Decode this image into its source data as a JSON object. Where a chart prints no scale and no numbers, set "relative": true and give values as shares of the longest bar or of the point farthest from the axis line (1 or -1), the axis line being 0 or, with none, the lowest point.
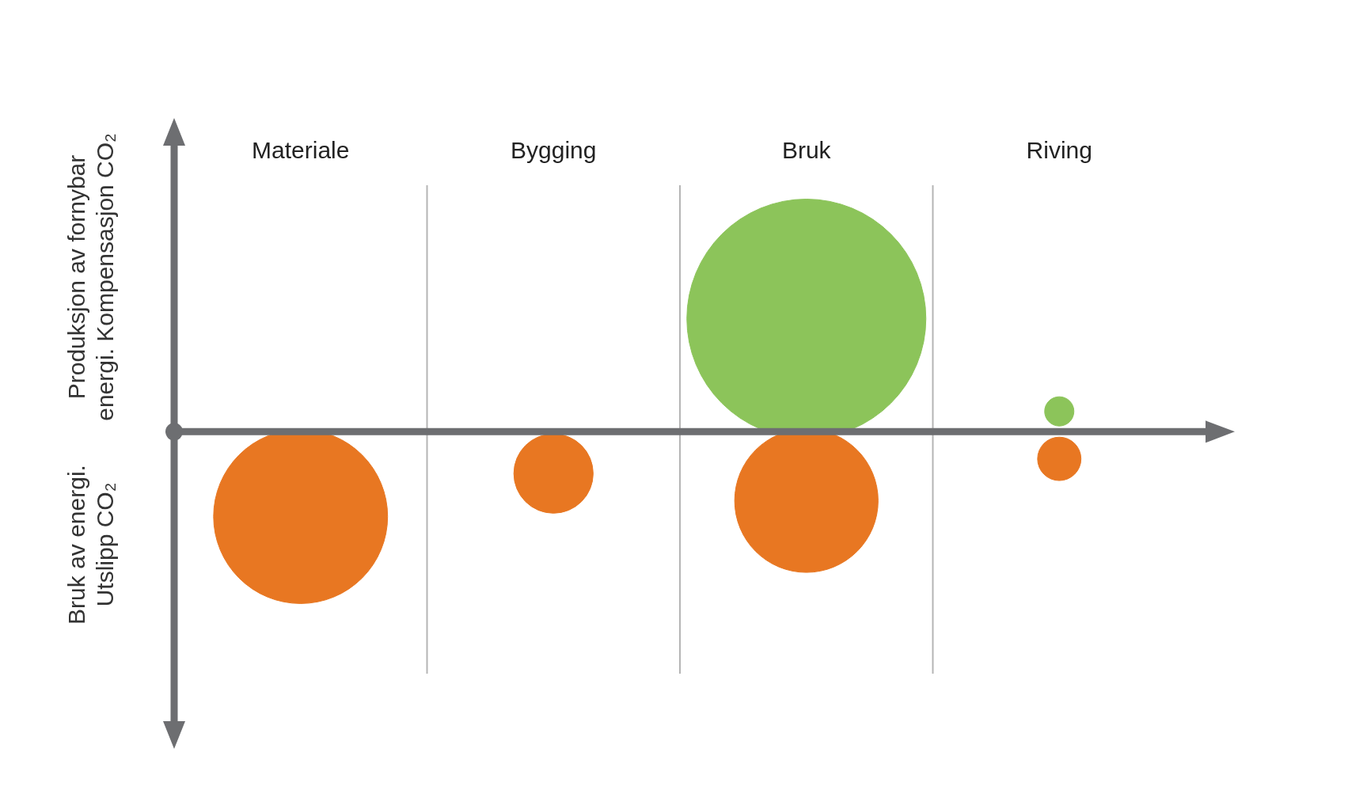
{
  "chart_data": {
    "type": "bubble",
    "relative": true,
    "categories": [
      "Materiale",
      "Bygging",
      "Bruk",
      "Riving"
    ],
    "ylabel": "Produksjon av fornybar energi. Kompensasjon CO₂",
    "annotations": [
      "Bruk av energi. Utslipp CO₂"
    ],
    "grid": "x",
    "legend": false,
    "series": [
      {
        "color": "#e87722",
        "x": [
          "Materiale",
          "Bygging",
          "Bruk",
          "Riving"
        ],
        "values": [
          -0.75,
          -0.37,
          -0.61,
          -0.24
        ],
        "sizes": [
          0.53,
          0.11,
          0.36,
          0.033
        ]
      },
      {
        "color": "#8cc45a",
        "x": [
          "Bruk",
          "Riving"
        ],
        "values": [
          1,
          0.18
        ],
        "sizes": [
          1,
          0.015
        ]
      }
    ]
  }
}
